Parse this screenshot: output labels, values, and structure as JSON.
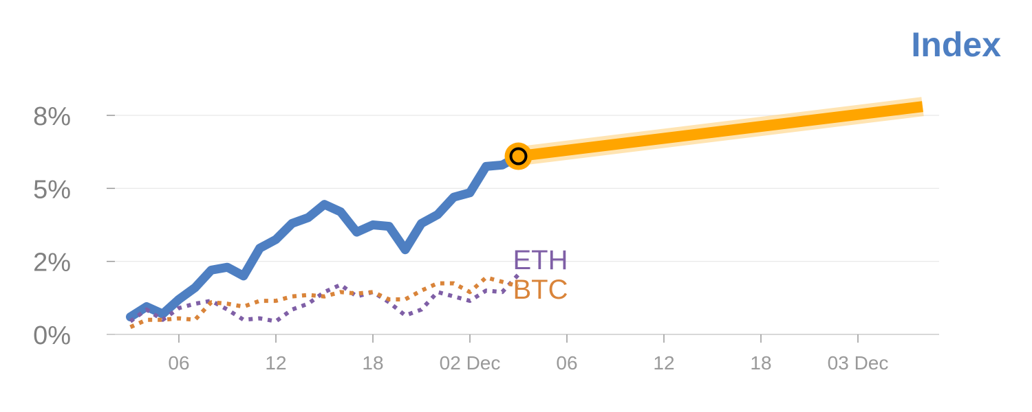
{
  "chart_data": {
    "type": "line",
    "title": "Index",
    "x_ticks": [
      "06",
      "12",
      "18",
      "02 Dec",
      "06",
      "12",
      "18",
      "03 Dec"
    ],
    "y_ticks": [
      "0%",
      "2%",
      "5%",
      "8%"
    ],
    "y_tick_values": [
      0,
      2.5,
      5,
      7.5
    ],
    "ylim": [
      0,
      7.5
    ],
    "grid": true,
    "series": [
      {
        "name": "",
        "style": "solid",
        "color": "#4e7fc2",
        "x": [
          3,
          4,
          5,
          6,
          7,
          8,
          9,
          10,
          11,
          12,
          13,
          14,
          15,
          16,
          17,
          18,
          19,
          20,
          21,
          22,
          23,
          24,
          25,
          26,
          27
        ],
        "values": [
          0.6,
          0.95,
          0.7,
          1.2,
          1.6,
          2.2,
          2.3,
          2.0,
          2.95,
          3.25,
          3.8,
          4.0,
          4.45,
          4.2,
          3.5,
          3.75,
          3.7,
          2.9,
          3.8,
          4.1,
          4.7,
          4.85,
          5.75,
          5.8,
          6.1
        ]
      },
      {
        "name": "ETH",
        "style": "dotted",
        "color": "#7f5fa6",
        "x": [
          3,
          4,
          5,
          6,
          7,
          8,
          9,
          10,
          11,
          12,
          13,
          14,
          15,
          16,
          17,
          18,
          19,
          20,
          21,
          22,
          23,
          24,
          25,
          26,
          27
        ],
        "values": [
          0.45,
          0.85,
          0.5,
          0.9,
          1.05,
          1.15,
          0.85,
          0.5,
          0.55,
          0.45,
          0.85,
          1.05,
          1.45,
          1.7,
          1.3,
          1.45,
          1.1,
          0.65,
          0.85,
          1.45,
          1.3,
          1.15,
          1.5,
          1.45,
          2.05
        ]
      },
      {
        "name": "BTC",
        "style": "dotted",
        "color": "#d9843a",
        "x": [
          3,
          4,
          5,
          6,
          7,
          8,
          9,
          10,
          11,
          12,
          13,
          14,
          15,
          16,
          17,
          18,
          19,
          20,
          21,
          22,
          23,
          24,
          25,
          26,
          27
        ],
        "values": [
          0.25,
          0.5,
          0.5,
          0.55,
          0.5,
          1.1,
          1.05,
          0.95,
          1.15,
          1.15,
          1.3,
          1.35,
          1.3,
          1.45,
          1.4,
          1.45,
          1.2,
          1.2,
          1.5,
          1.75,
          1.75,
          1.45,
          1.95,
          1.8,
          1.65
        ]
      },
      {
        "name": "",
        "style": "projection",
        "color": "#ffa500",
        "x": [
          27,
          52
        ],
        "values": [
          6.1,
          7.8
        ]
      }
    ],
    "highlight_point": {
      "x": 27,
      "value": 6.1,
      "color": "#ffa500"
    }
  }
}
